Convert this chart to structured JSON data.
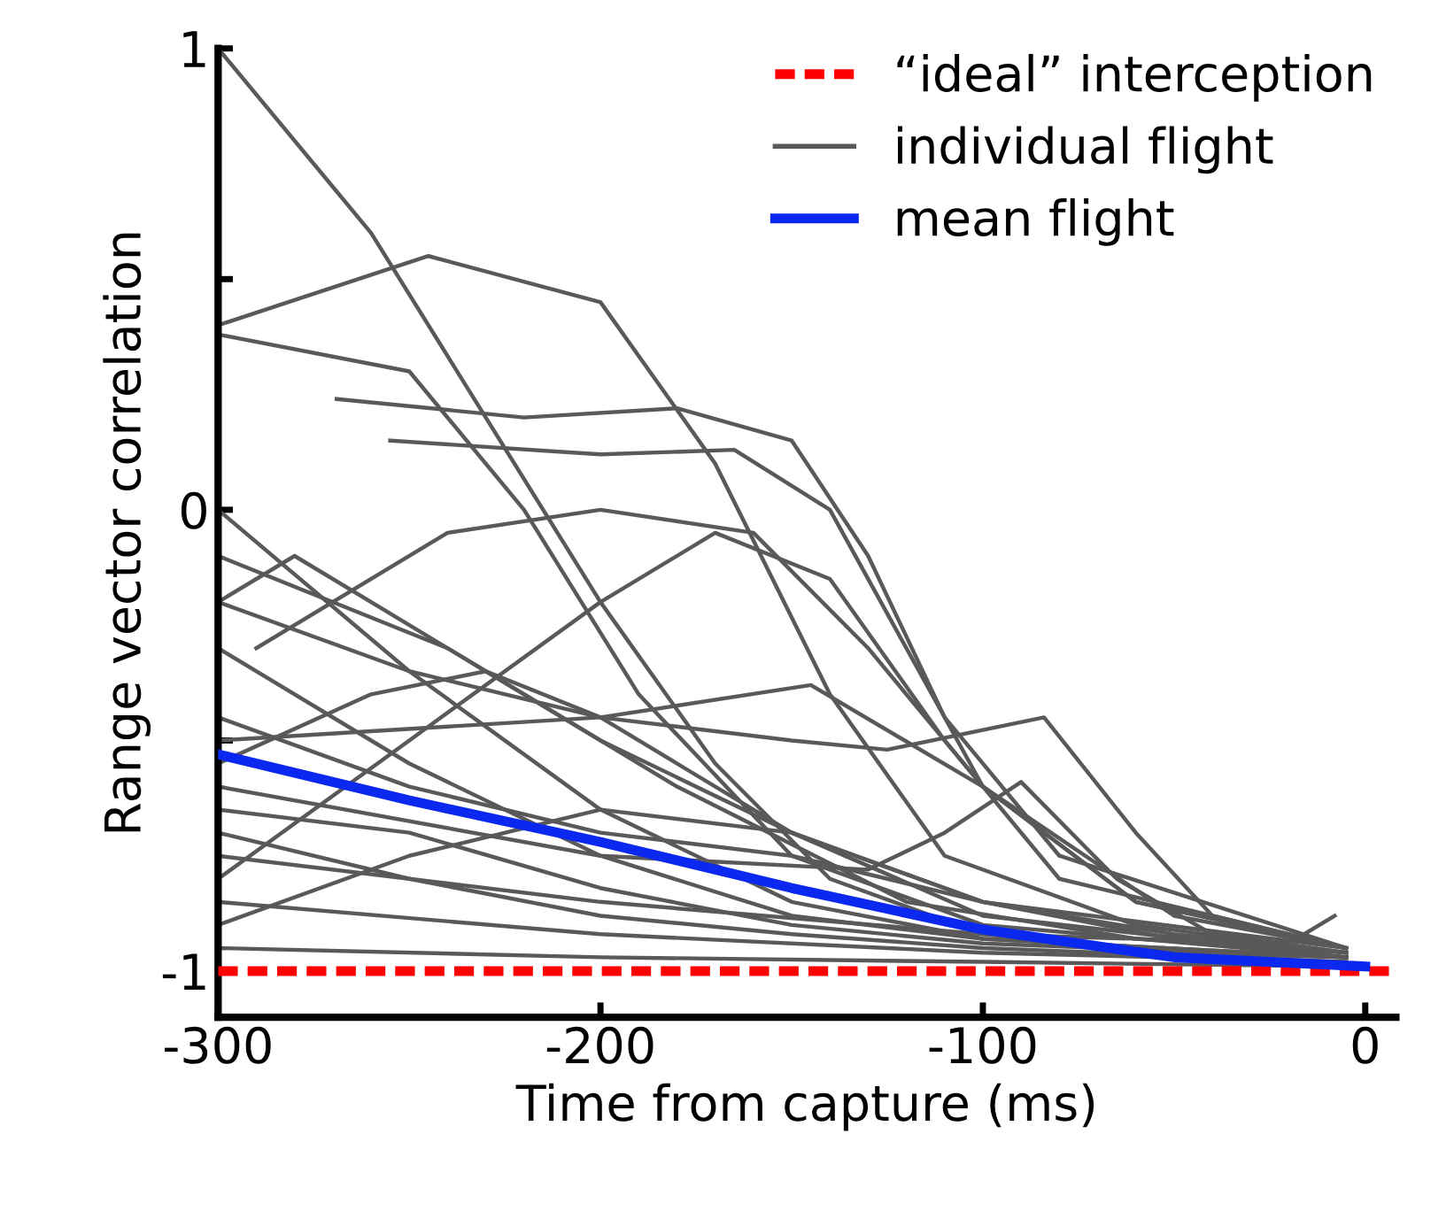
{
  "chart_data": {
    "type": "line",
    "xlabel": "Time from capture (ms)",
    "ylabel": "Range vector correlation",
    "xlim": [
      -300,
      8
    ],
    "ylim": [
      -1.1,
      1.0
    ],
    "xticks": [
      -300,
      -200,
      -100,
      0
    ],
    "yticks": [
      -1,
      {
        "value": -0.5,
        "label": null
      },
      0,
      {
        "value": 0.5,
        "label": null
      },
      1
    ],
    "legend": "top right",
    "grid": false,
    "ref_lines": [
      {
        "axis": "y",
        "value": -1,
        "label": "“ideal” interception",
        "color": "#ff0000",
        "line_style": "dashed"
      }
    ],
    "series": [
      {
        "name": "individual flight",
        "color": "#5a5858",
        "x": [
          -300,
          -260,
          -230,
          -200,
          -170,
          -140,
          -100,
          -50,
          -5
        ],
        "values": [
          1.0,
          0.6,
          0.2,
          -0.2,
          -0.55,
          -0.8,
          -0.92,
          -0.96,
          -0.97
        ]
      },
      {
        "color": "#5a5858",
        "x": [
          -300,
          -245,
          -200,
          -170,
          -140,
          -110,
          -60,
          -5
        ],
        "values": [
          0.4,
          0.55,
          0.45,
          0.1,
          -0.4,
          -0.75,
          -0.9,
          -0.96
        ]
      },
      {
        "color": "#5a5858",
        "x": [
          -300,
          -250,
          -220,
          -190,
          -150,
          -100,
          -5
        ],
        "values": [
          0.38,
          0.3,
          0.0,
          -0.4,
          -0.75,
          -0.9,
          -0.97
        ]
      },
      {
        "color": "#5a5858",
        "x": [
          -255,
          -200,
          -165,
          -140,
          -120,
          -100,
          -60,
          -5
        ],
        "values": [
          0.15,
          0.12,
          0.13,
          0.0,
          -0.3,
          -0.6,
          -0.85,
          -0.95
        ]
      },
      {
        "color": "#5a5858",
        "x": [
          -290,
          -240,
          -200,
          -160,
          -130,
          -100,
          -60,
          -5
        ],
        "values": [
          -0.3,
          -0.05,
          0.0,
          -0.05,
          -0.3,
          -0.6,
          -0.85,
          -0.95
        ]
      },
      {
        "color": "#5a5858",
        "x": [
          -300,
          -250,
          -200,
          -150,
          -125,
          -84,
          -60,
          -40,
          -5
        ],
        "values": [
          -0.2,
          -0.35,
          -0.45,
          -0.5,
          -0.52,
          -0.45,
          -0.7,
          -0.88,
          -0.95
        ]
      },
      {
        "color": "#5a5858",
        "x": [
          -300,
          -200,
          -130,
          -110,
          -90,
          -65,
          -40,
          -5
        ],
        "values": [
          -0.6,
          -0.75,
          -0.78,
          -0.7,
          -0.59,
          -0.8,
          -0.92,
          -0.96
        ]
      },
      {
        "color": "#5a5858",
        "x": [
          -300,
          -200,
          -145,
          -100,
          -50,
          -5
        ],
        "values": [
          -0.5,
          -0.45,
          -0.38,
          -0.6,
          -0.88,
          -0.95
        ]
      },
      {
        "color": "#5a5858",
        "x": [
          -300,
          -250,
          -200,
          -150,
          -100,
          -5
        ],
        "values": [
          0.0,
          -0.35,
          -0.65,
          -0.85,
          -0.93,
          -0.97
        ]
      },
      {
        "color": "#5a5858",
        "x": [
          -300,
          -240,
          -180,
          -120,
          -60,
          -5
        ],
        "values": [
          -0.1,
          -0.3,
          -0.6,
          -0.85,
          -0.93,
          -0.96
        ]
      },
      {
        "color": "#5a5858",
        "x": [
          -300,
          -250,
          -200,
          -150,
          -100,
          -5
        ],
        "values": [
          -0.3,
          -0.55,
          -0.75,
          -0.88,
          -0.93,
          -0.97
        ]
      },
      {
        "color": "#5a5858",
        "x": [
          -300,
          -250,
          -200,
          -150,
          -100,
          -5
        ],
        "values": [
          -0.7,
          -0.8,
          -0.88,
          -0.92,
          -0.95,
          -0.98
        ]
      },
      {
        "color": "#5a5858",
        "x": [
          -300,
          -200,
          -100,
          -5
        ],
        "values": [
          -0.85,
          -0.92,
          -0.96,
          -0.98
        ]
      },
      {
        "color": "#5a5858",
        "x": [
          -300,
          -200,
          -100,
          -5
        ],
        "values": [
          -0.95,
          -0.97,
          -0.98,
          -0.99
        ]
      },
      {
        "color": "#5a5858",
        "x": [
          -300,
          -250,
          -200,
          -150,
          -100,
          -50,
          -5
        ],
        "values": [
          -0.45,
          -0.6,
          -0.7,
          -0.75,
          -0.85,
          -0.93,
          -0.96
        ]
      },
      {
        "color": "#5a5858",
        "x": [
          -300,
          -250,
          -200,
          -170,
          -140,
          -110,
          -80,
          -5
        ],
        "values": [
          -0.8,
          -0.5,
          -0.2,
          -0.05,
          -0.15,
          -0.5,
          -0.8,
          -0.95
        ]
      },
      {
        "color": "#5a5858",
        "x": [
          -269,
          -220,
          -180,
          -150,
          -130,
          -110,
          -80,
          -5
        ],
        "values": [
          0.24,
          0.2,
          0.22,
          0.15,
          -0.1,
          -0.45,
          -0.75,
          -0.95
        ]
      },
      {
        "color": "#5a5858",
        "x": [
          -300,
          -260,
          -230,
          -200,
          -150,
          -100,
          -5
        ],
        "values": [
          -0.55,
          -0.4,
          -0.35,
          -0.45,
          -0.7,
          -0.88,
          -0.97
        ]
      },
      {
        "color": "#5a5858",
        "x": [
          -300,
          -280,
          -250,
          -200,
          -150,
          -100,
          -5
        ],
        "values": [
          -0.2,
          -0.1,
          -0.25,
          -0.5,
          -0.7,
          -0.85,
          -0.95
        ]
      },
      {
        "color": "#5a5858",
        "x": [
          -300,
          -250,
          -200,
          -150,
          -100,
          -50,
          -5
        ],
        "values": [
          -0.9,
          -0.75,
          -0.65,
          -0.7,
          -0.85,
          -0.92,
          -0.96
        ]
      },
      {
        "color": "#5a5858",
        "x": [
          -300,
          -250,
          -200,
          -150,
          -100,
          -5
        ],
        "values": [
          -0.65,
          -0.7,
          -0.82,
          -0.9,
          -0.94,
          -0.97
        ]
      },
      {
        "color": "#5a5858",
        "x": [
          -300,
          -200,
          -100,
          -20,
          -8
        ],
        "values": [
          -0.75,
          -0.85,
          -0.92,
          -0.94,
          -0.88
        ]
      },
      {
        "name": "mean flight",
        "color": "#0a28f0",
        "x": [
          -300,
          -250,
          -200,
          -150,
          -100,
          -50,
          0
        ],
        "values": [
          -0.53,
          -0.63,
          -0.72,
          -0.82,
          -0.91,
          -0.97,
          -0.99
        ]
      }
    ]
  }
}
